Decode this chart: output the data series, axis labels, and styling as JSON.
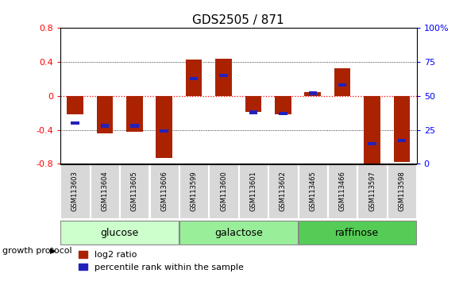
{
  "title": "GDS2505 / 871",
  "samples": [
    "GSM113603",
    "GSM113604",
    "GSM113605",
    "GSM113606",
    "GSM113599",
    "GSM113600",
    "GSM113601",
    "GSM113602",
    "GSM113465",
    "GSM113466",
    "GSM113597",
    "GSM113598"
  ],
  "log2_ratio": [
    -0.22,
    -0.44,
    -0.42,
    -0.73,
    0.43,
    0.44,
    -0.19,
    -0.22,
    0.05,
    0.33,
    -0.8,
    -0.78
  ],
  "percentile_rank": [
    30,
    28,
    28,
    24,
    63,
    65,
    38,
    37,
    52,
    58,
    15,
    17
  ],
  "groups": [
    {
      "label": "glucose",
      "start": 0,
      "end": 4,
      "color": "#ccffcc"
    },
    {
      "label": "galactose",
      "start": 4,
      "end": 8,
      "color": "#99ee99"
    },
    {
      "label": "raffinose",
      "start": 8,
      "end": 12,
      "color": "#55cc55"
    }
  ],
  "bar_color": "#aa2200",
  "blue_color": "#2222bb",
  "ylim": [
    -0.8,
    0.8
  ],
  "yticks": [
    -0.8,
    -0.4,
    0.0,
    0.4,
    0.8
  ],
  "right_yticks": [
    0,
    25,
    50,
    75,
    100
  ],
  "right_ytick_labels": [
    "0",
    "25",
    "50",
    "75",
    "100%"
  ],
  "bar_width": 0.55,
  "blue_bar_width": 0.28,
  "blue_bar_height": 0.04,
  "group_label_fontsize": 9,
  "tick_label_fontsize": 8,
  "title_fontsize": 11,
  "legend_fontsize": 8
}
